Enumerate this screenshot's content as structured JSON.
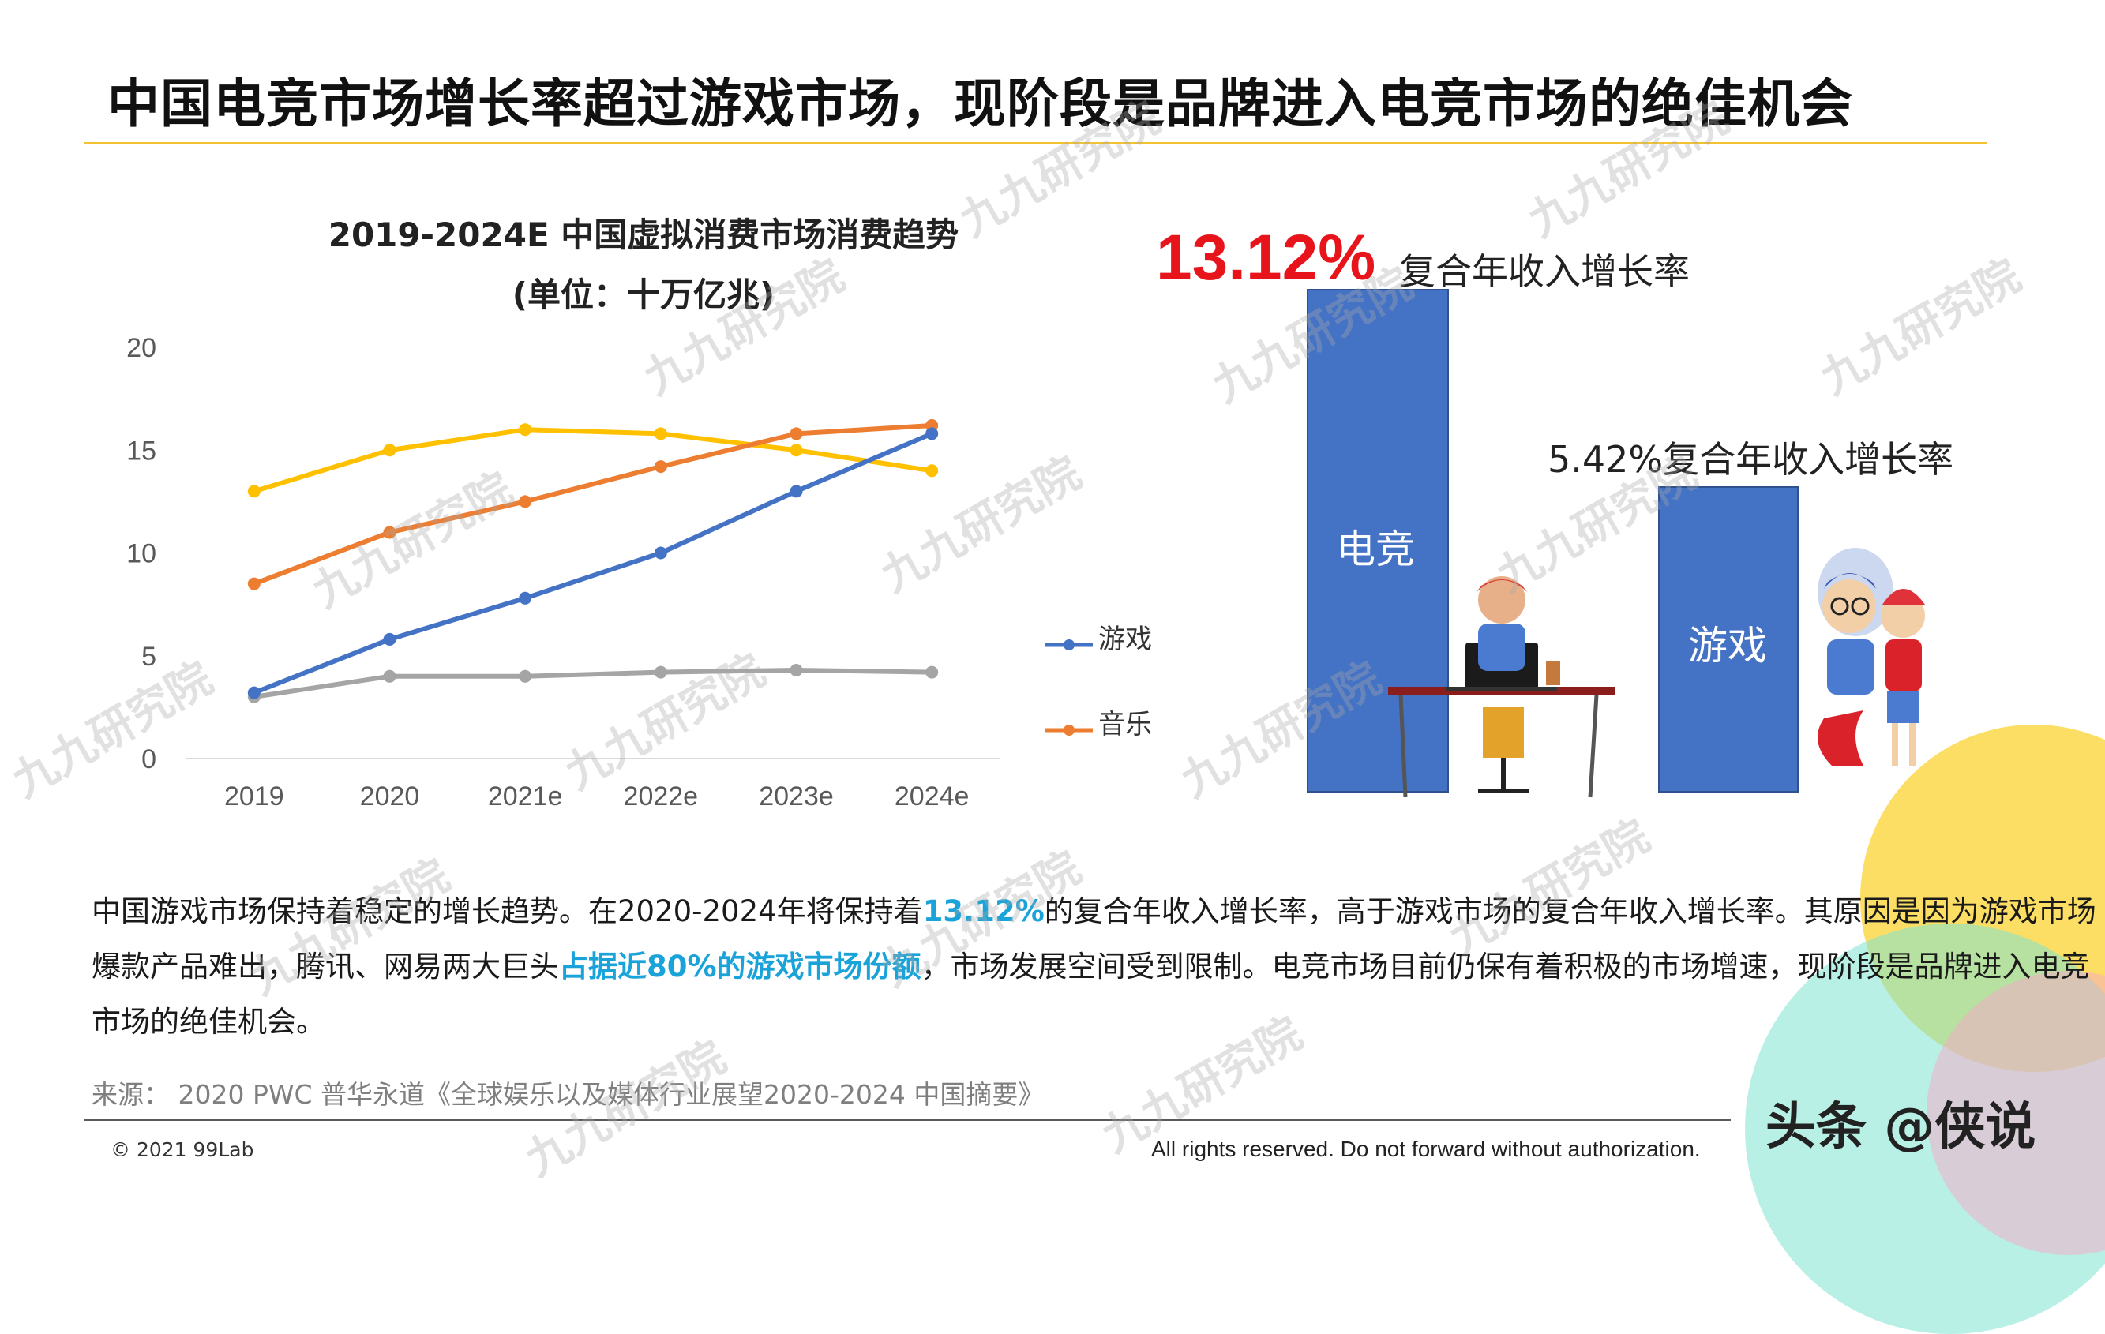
{
  "header": {
    "title": "中国电竞市场增长率超过游戏市场，现阶段是品牌进入电竞市场的绝佳机会"
  },
  "line_chart": {
    "title": "2019-2024E 中国虚拟消费市场消费趋势",
    "subtitle": "(单位：十万亿兆)"
  },
  "chart_data": [
    {
      "type": "line",
      "title": "2019-2024E 中国虚拟消费市场消费趋势",
      "subtitle": "(单位：十万亿兆)",
      "categories": [
        "2019",
        "2020",
        "2021e",
        "2022e",
        "2023e",
        "2024e"
      ],
      "y_ticks": [
        "0",
        "5",
        "10",
        "15",
        "20"
      ],
      "ylim": [
        0,
        20
      ],
      "grid": false,
      "legend_position": "right",
      "series": [
        {
          "name": "游戏",
          "color": "#4472c4",
          "values": [
            3.2,
            5.8,
            7.8,
            10.0,
            13.0,
            15.8
          ]
        },
        {
          "name": "音乐",
          "color": "#ed7d31",
          "values": [
            8.5,
            11.0,
            12.5,
            14.2,
            15.8,
            16.2
          ]
        },
        {
          "name": "",
          "color": "#a5a5a5",
          "values": [
            3.0,
            4.0,
            4.0,
            4.2,
            4.3,
            4.2
          ]
        },
        {
          "name": "",
          "color": "#ffc000",
          "values": [
            13.0,
            15.0,
            16.0,
            15.8,
            15.0,
            14.0
          ]
        }
      ]
    },
    {
      "type": "bar",
      "categories": [
        "电竞",
        "游戏"
      ],
      "values": [
        13.12,
        5.42
      ],
      "unit": "%",
      "annotations": [
        "13.12%",
        "复合年收入增长率",
        "5.42%复合年收入增长率"
      ],
      "color": "#4472c4"
    }
  ],
  "cagr_panel": {
    "esports_pct": "13.12%",
    "esports_note": "复合年收入增长率",
    "esports_label": "电竞",
    "game_note": "5.42%复合年收入增长率",
    "game_label": "游戏"
  },
  "summary": {
    "p1": "中国游戏市场保持着稳定的增长趋势。在2020-2024年将保持着",
    "h1": "13.12%",
    "p2": "的复合年收入增长率，高于游戏市场的复合年收入增长率。其原因是因为游戏市场爆款产品难出，腾讯、网易两大巨头",
    "h2": "占据近80%的游戏市场份额",
    "p3": "，市场发展空间受到限制。电竞市场目前仍保有着积极的市场增速，现阶段是品牌进入电竞市场的绝佳机会。"
  },
  "source": "来源： 2020  PWC 普华永道《全球娱乐以及媒体行业展望2020-2024 中国摘要》",
  "footer": {
    "copyright": "© 2021 99Lab",
    "rights": "All rights reserved. Do not forward without authorization."
  },
  "watermark": "九九研究院",
  "brand_mark": "头条 @侠说",
  "colors": {
    "accent_rule": "#f2c230",
    "highlight": "#1aa3d9",
    "bar": "#4472c4",
    "emphasis_red": "#e8141b"
  }
}
